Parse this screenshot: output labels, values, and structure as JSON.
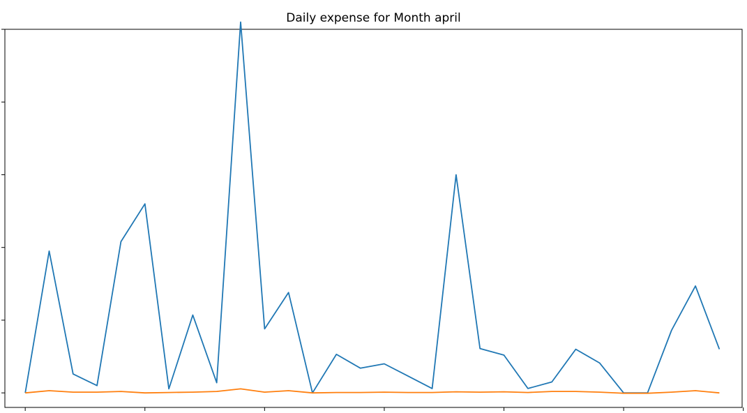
{
  "chart_data": {
    "type": "line",
    "title": "Daily expense for Month april",
    "xlabel": "",
    "ylabel": "",
    "x": [
      1,
      2,
      3,
      4,
      5,
      6,
      7,
      8,
      9,
      10,
      11,
      12,
      13,
      14,
      15,
      16,
      17,
      18,
      19,
      20,
      21,
      22,
      23,
      24,
      25,
      26,
      27,
      28,
      29,
      30
    ],
    "xlim": [
      0.15,
      30.95
    ],
    "ylim": [
      -200,
      5000
    ],
    "grid": false,
    "legend": "none",
    "series": [
      {
        "color": "#1f77b4",
        "values": [
          0,
          1950,
          260,
          100,
          2080,
          2600,
          55,
          1070,
          140,
          5100,
          880,
          1380,
          0,
          530,
          340,
          400,
          230,
          60,
          3000,
          610,
          520,
          60,
          150,
          600,
          410,
          0,
          0,
          860,
          1470,
          600
        ]
      },
      {
        "color": "#ff7f0e",
        "values": [
          0,
          30,
          10,
          10,
          20,
          0,
          5,
          10,
          20,
          55,
          10,
          30,
          0,
          5,
          5,
          10,
          5,
          5,
          15,
          10,
          15,
          5,
          20,
          20,
          10,
          -5,
          -5,
          10,
          30,
          0
        ]
      }
    ]
  }
}
